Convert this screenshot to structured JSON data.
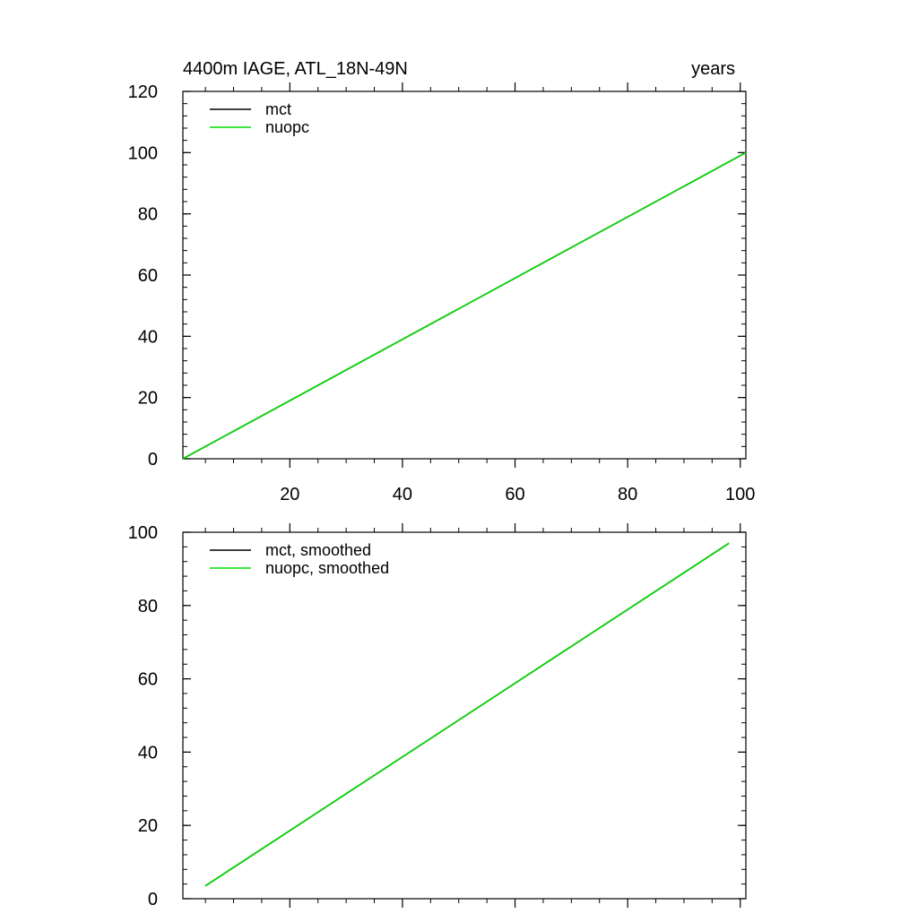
{
  "chart_data": [
    {
      "type": "line",
      "title_left": "4400m IAGE, ATL_18N-49N",
      "title_right": "years",
      "xlim": [
        1,
        101
      ],
      "ylim": [
        0,
        120
      ],
      "xticks": [
        20,
        40,
        60,
        80,
        100
      ],
      "yticks": [
        0,
        20,
        40,
        60,
        80,
        100,
        120
      ],
      "series": [
        {
          "name": "mct",
          "color": "#000000",
          "x": [
            1,
            101
          ],
          "y": [
            0,
            100
          ]
        },
        {
          "name": "nuopc",
          "color": "#00dd00",
          "x": [
            1,
            101
          ],
          "y": [
            0,
            100
          ]
        }
      ]
    },
    {
      "type": "line",
      "xlim": [
        1,
        101
      ],
      "ylim": [
        0,
        100
      ],
      "xticks": [
        20,
        40,
        60,
        80,
        100
      ],
      "yticks": [
        0,
        20,
        40,
        60,
        80,
        100
      ],
      "series": [
        {
          "name": "mct, smoothed",
          "color": "#000000",
          "x": [
            5,
            98
          ],
          "y": [
            3.5,
            97
          ]
        },
        {
          "name": "nuopc, smoothed",
          "color": "#00dd00",
          "x": [
            5,
            98
          ],
          "y": [
            3.5,
            97
          ]
        }
      ]
    }
  ]
}
